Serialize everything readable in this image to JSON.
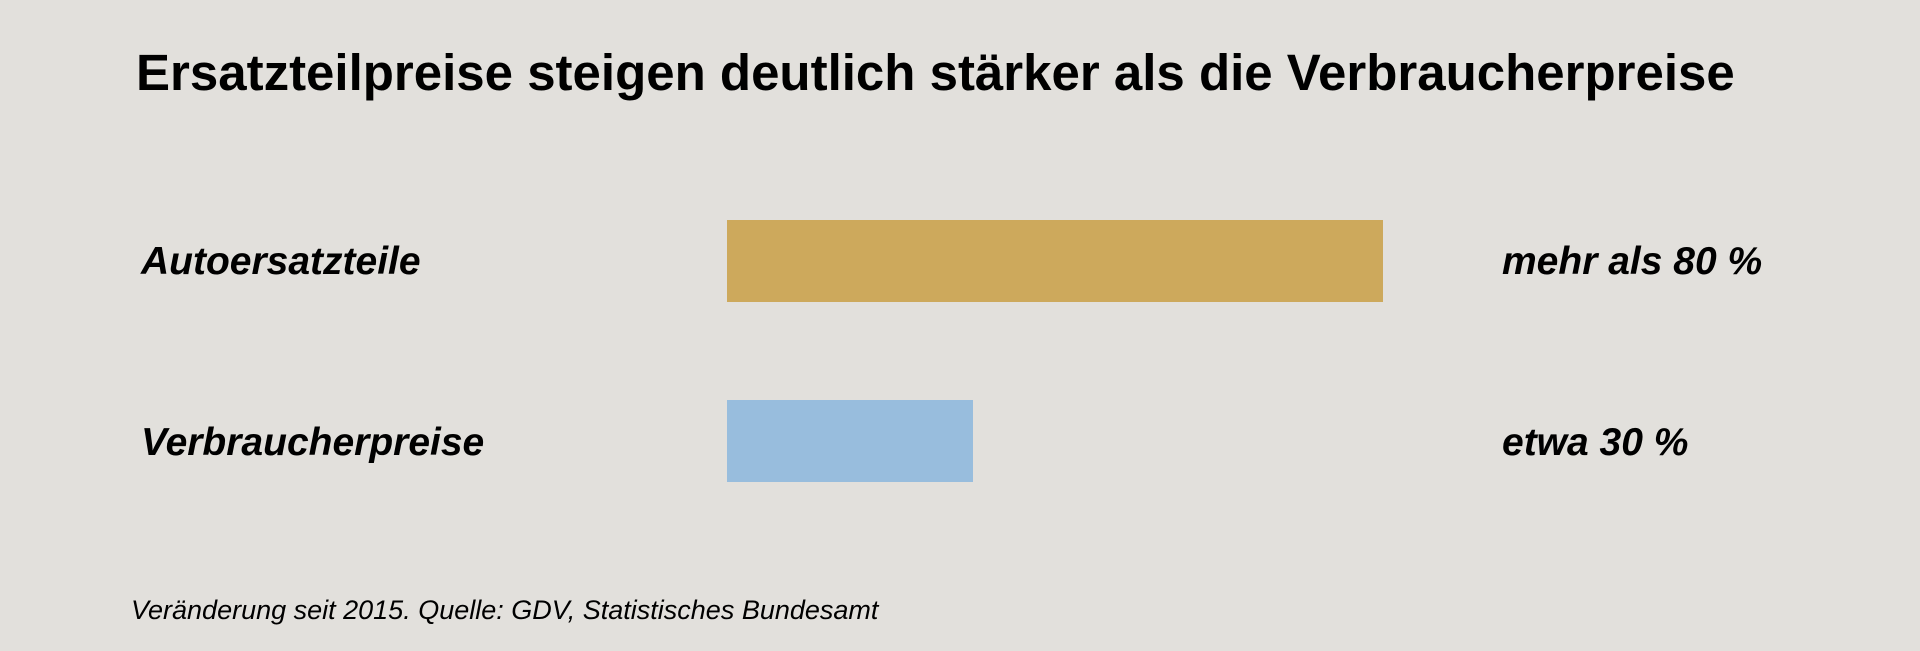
{
  "chart_data": {
    "type": "bar",
    "orientation": "horizontal",
    "title": "Ersatzteilpreise steigen deutlich stärker als die Verbraucherpreise",
    "categories": [
      "Autoersatzteile",
      "Verbraucherpreise"
    ],
    "values": [
      80,
      30
    ],
    "value_labels": [
      "mehr als 80 %",
      "etwa 30 %"
    ],
    "colors": [
      "#cda95c",
      "#98bddd"
    ],
    "xlim": [
      0,
      100
    ],
    "grid": false,
    "footnote": "Veränderung seit 2015. Quelle: GDV, Statistisches Bundesamt"
  }
}
